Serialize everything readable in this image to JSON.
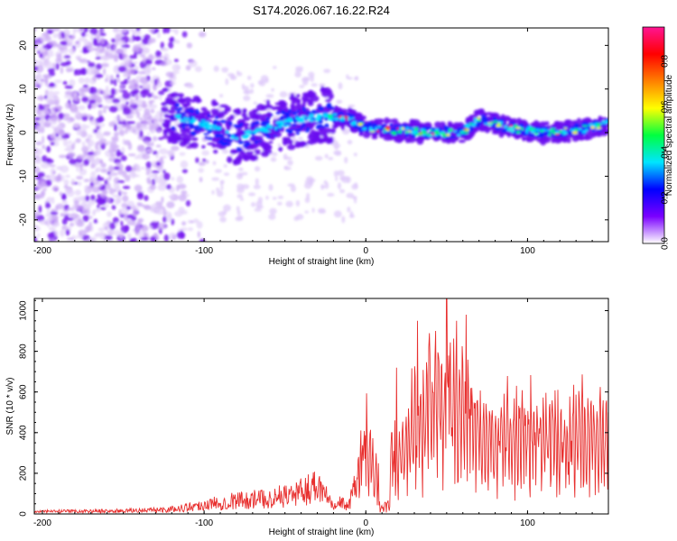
{
  "title": "S174.2026.067.16.22.R24",
  "chart_data": [
    {
      "type": "heatmap",
      "name": "spectrogram",
      "xlabel": "Height of straight line (km)",
      "ylabel": "Frequency (Hz)",
      "xlim": [
        -205,
        150
      ],
      "ylim": [
        -25,
        24
      ],
      "xticks": [
        -200,
        -100,
        0,
        100
      ],
      "yticks": [
        -20,
        -10,
        0,
        10,
        20
      ],
      "colorbar": {
        "label": "Normalized spectral amplitude",
        "range": [
          0,
          0.95
        ],
        "ticks": [
          0.0,
          0.2,
          0.4,
          0.6,
          0.8
        ],
        "tick_labels": [
          "0.0",
          "0.2",
          "0.4",
          "0.6",
          "0.8"
        ],
        "colors": [
          "#ffffff",
          "#7a00ff",
          "#0000ff",
          "#00e5ff",
          "#00ff40",
          "#ffff00",
          "#ff8000",
          "#ff0000",
          "#ff1493"
        ]
      },
      "ridge": [
        {
          "x": -120,
          "f": 4
        },
        {
          "x": -100,
          "f": 2
        },
        {
          "x": -80,
          "f": -1
        },
        {
          "x": -60,
          "f": 1
        },
        {
          "x": -40,
          "f": 3
        },
        {
          "x": -25,
          "f": 4
        },
        {
          "x": -10,
          "f": 3
        },
        {
          "x": 0,
          "f": 1
        },
        {
          "x": 20,
          "f": 0.5
        },
        {
          "x": 40,
          "f": 0
        },
        {
          "x": 60,
          "f": 0
        },
        {
          "x": 70,
          "f": 3
        },
        {
          "x": 90,
          "f": 1
        },
        {
          "x": 110,
          "f": 0
        },
        {
          "x": 130,
          "f": 0.5
        },
        {
          "x": 150,
          "f": 2
        }
      ]
    },
    {
      "type": "line",
      "name": "snr",
      "xlabel": "Height of straight line (km)",
      "ylabel": "SNR (10 * v/v)",
      "xlim": [
        -205,
        150
      ],
      "ylim": [
        0,
        1060
      ],
      "xticks": [
        -200,
        -100,
        0,
        100
      ],
      "yticks": [
        0,
        200,
        400,
        600,
        800,
        1000
      ],
      "color": "#e8302f",
      "series": [
        {
          "x": -205,
          "y": 15
        },
        {
          "x": -150,
          "y": 20
        },
        {
          "x": -120,
          "y": 30
        },
        {
          "x": -100,
          "y": 60
        },
        {
          "x": -80,
          "y": 90
        },
        {
          "x": -60,
          "y": 100
        },
        {
          "x": -40,
          "y": 140
        },
        {
          "x": -30,
          "y": 200
        },
        {
          "x": -20,
          "y": 80
        },
        {
          "x": -10,
          "y": 60
        },
        {
          "x": 0,
          "y": 450
        },
        {
          "x": 10,
          "y": 100
        },
        {
          "x": 20,
          "y": 350
        },
        {
          "x": 30,
          "y": 550
        },
        {
          "x": 40,
          "y": 650
        },
        {
          "x": 50,
          "y": 700
        },
        {
          "x": 60,
          "y": 600
        },
        {
          "x": 70,
          "y": 500
        },
        {
          "x": 80,
          "y": 450
        },
        {
          "x": 100,
          "y": 520
        },
        {
          "x": 120,
          "y": 480
        },
        {
          "x": 140,
          "y": 500
        },
        {
          "x": 150,
          "y": 470
        }
      ],
      "peaks": [
        {
          "x": 16,
          "y": 400
        },
        {
          "x": 18,
          "y": 460
        },
        {
          "x": 19,
          "y": 720
        },
        {
          "x": 32,
          "y": 950
        },
        {
          "x": 39,
          "y": 820
        },
        {
          "x": 45,
          "y": 780
        },
        {
          "x": 50,
          "y": 1060
        },
        {
          "x": 56,
          "y": 950
        },
        {
          "x": 62,
          "y": 980
        }
      ]
    }
  ]
}
